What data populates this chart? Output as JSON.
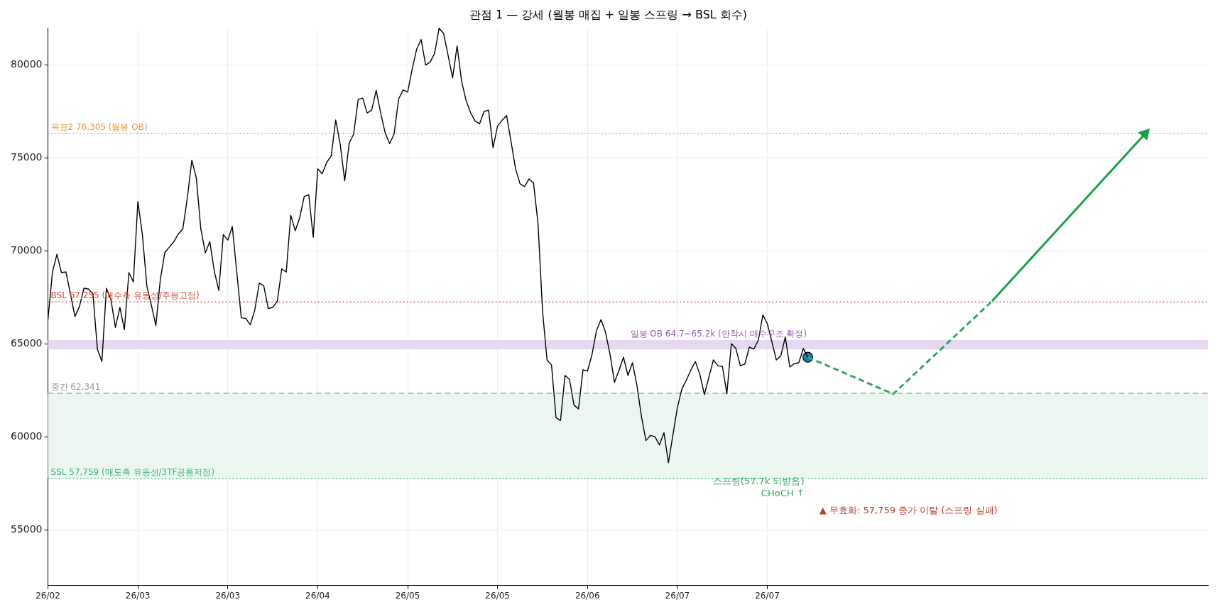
{
  "chart_data": {
    "type": "line",
    "title": "관점 1 — 강세 (월봉 매집 + 일봉 스프링 → BSL 회수)",
    "categories": [
      "26/02",
      null,
      null,
      null,
      null,
      null,
      null,
      null,
      null,
      null,
      null,
      null,
      null,
      null,
      null,
      null,
      null,
      null,
      null,
      null,
      "26/03",
      null,
      null,
      null,
      null,
      null,
      null,
      null,
      null,
      null,
      null,
      null,
      null,
      null,
      null,
      null,
      null,
      null,
      null,
      null,
      "26/03",
      null,
      null,
      null,
      null,
      null,
      null,
      null,
      null,
      null,
      null,
      null,
      null,
      null,
      null,
      null,
      null,
      null,
      null,
      null,
      "26/04",
      null,
      null,
      null,
      null,
      null,
      null,
      null,
      null,
      null,
      null,
      null,
      null,
      null,
      null,
      null,
      null,
      null,
      null,
      null,
      "26/05",
      null,
      null,
      null,
      null,
      null,
      null,
      null,
      null,
      null,
      null,
      null,
      null,
      null,
      null,
      null,
      null,
      null,
      null,
      null,
      "26/05",
      null,
      null,
      null,
      null,
      null,
      null,
      null,
      null,
      null,
      null,
      null,
      null,
      null,
      null,
      null,
      null,
      null,
      null,
      null,
      "26/06",
      null,
      null,
      null,
      null,
      null,
      null,
      null,
      null,
      null,
      null,
      null,
      null,
      null,
      null,
      null,
      null,
      null,
      null,
      null,
      "26/07",
      null,
      null,
      null,
      null,
      null,
      null,
      null,
      null,
      null,
      null,
      null,
      null,
      null,
      null,
      null,
      null,
      null,
      null,
      null,
      "26/07",
      null,
      null,
      null,
      null,
      null,
      null,
      null,
      null,
      null,
      null,
      null,
      null,
      null,
      null,
      null,
      null,
      null,
      null,
      null,
      null,
      null,
      null,
      null,
      null,
      null,
      null,
      null,
      null,
      null,
      null,
      null,
      null,
      null,
      null,
      null,
      null,
      null,
      null,
      null,
      null,
      null,
      null,
      null,
      null,
      null,
      null,
      null,
      null,
      null,
      null,
      null,
      null,
      null,
      null,
      null,
      null,
      null,
      null,
      null,
      null,
      null,
      null,
      null,
      null,
      null,
      null,
      null,
      null,
      null,
      null,
      null,
      null,
      null,
      null,
      null,
      null,
      null,
      null,
      null,
      null,
      null,
      null,
      null,
      null,
      null,
      null,
      null,
      null,
      null,
      null,
      null,
      null,
      null,
      null,
      null,
      null,
      null,
      null
    ],
    "series": [
      {
        "color": "#000000",
        "values": [
          66300,
          68860,
          69820,
          68830,
          68870,
          67690,
          66470,
          67000,
          67990,
          67950,
          67690,
          64700,
          64050,
          67990,
          67380,
          65880,
          66960,
          65760,
          68830,
          68330,
          72660,
          70880,
          68100,
          67080,
          65980,
          68480,
          69920,
          70200,
          70500,
          70910,
          71180,
          72860,
          74880,
          73920,
          71180,
          69890,
          70500,
          68900,
          67870,
          70880,
          70580,
          71310,
          68830,
          66400,
          66370,
          66020,
          66810,
          68270,
          68120,
          66900,
          66960,
          67280,
          69030,
          68860,
          71920,
          71080,
          71790,
          72930,
          73020,
          70730,
          74410,
          74150,
          74760,
          75110,
          77040,
          75740,
          73770,
          75790,
          76290,
          78150,
          78220,
          77420,
          77570,
          78630,
          77420,
          76350,
          75770,
          76300,
          78180,
          78660,
          78540,
          79770,
          80850,
          81370,
          80000,
          80150,
          80630,
          81980,
          81690,
          80510,
          79310,
          81030,
          79120,
          78090,
          77430,
          76990,
          76840,
          77500,
          77570,
          75550,
          76720,
          77020,
          77280,
          75880,
          74410,
          73610,
          73460,
          73870,
          73650,
          71470,
          66770,
          64130,
          63860,
          61030,
          60870,
          63300,
          63080,
          61700,
          61500,
          63600,
          63540,
          64420,
          65710,
          66300,
          65630,
          64450,
          62930,
          63570,
          64280,
          63300,
          63980,
          62760,
          61090,
          59790,
          60070,
          60000,
          59560,
          60220,
          58610,
          60100,
          61580,
          62580,
          63050,
          63600,
          64040,
          63350,
          62270,
          63200,
          64130,
          63820,
          63790,
          62320,
          65010,
          64750,
          63820,
          63910,
          64820,
          64720,
          65190,
          66550,
          66080,
          65120,
          64130,
          64350,
          65370,
          63750,
          63940,
          63980,
          64750,
          64280,
          null,
          null,
          null,
          null,
          null,
          null,
          null,
          null,
          null,
          null,
          null,
          null,
          null,
          null,
          null,
          null,
          null,
          null,
          null,
          null,
          null,
          null,
          null,
          null,
          null,
          null,
          null,
          null,
          null,
          null,
          null,
          null,
          null,
          null,
          null,
          null,
          null,
          null,
          null,
          null,
          null,
          null,
          null,
          null,
          null,
          null,
          null,
          null,
          null,
          null,
          null,
          null,
          null,
          null,
          null,
          null,
          null,
          null,
          null,
          null,
          null,
          null,
          null,
          null,
          null,
          null,
          null,
          null,
          null,
          null,
          null,
          null,
          null,
          null,
          null,
          null,
          null,
          null,
          null,
          null,
          null,
          null,
          null,
          null,
          null,
          null,
          null,
          null,
          null
        ]
      },
      {
        "color": "#2eaa5c",
        "line_style": "dashed",
        "values": [
          null,
          null,
          null,
          null,
          null,
          null,
          null,
          null,
          null,
          null,
          null,
          null,
          null,
          null,
          null,
          null,
          null,
          null,
          null,
          null,
          null,
          null,
          null,
          null,
          null,
          null,
          null,
          null,
          null,
          null,
          null,
          null,
          null,
          null,
          null,
          null,
          null,
          null,
          null,
          null,
          null,
          null,
          null,
          null,
          null,
          null,
          null,
          null,
          null,
          null,
          null,
          null,
          null,
          null,
          null,
          null,
          null,
          null,
          null,
          null,
          null,
          null,
          null,
          null,
          null,
          null,
          null,
          null,
          null,
          null,
          null,
          null,
          null,
          null,
          null,
          null,
          null,
          null,
          null,
          null,
          null,
          null,
          null,
          null,
          null,
          null,
          null,
          null,
          null,
          null,
          null,
          null,
          null,
          null,
          null,
          null,
          null,
          null,
          null,
          null,
          null,
          null,
          null,
          null,
          null,
          null,
          null,
          null,
          null,
          null,
          null,
          null,
          null,
          null,
          null,
          null,
          null,
          null,
          null,
          null,
          null,
          null,
          null,
          null,
          null,
          null,
          null,
          null,
          null,
          null,
          null,
          null,
          null,
          null,
          null,
          null,
          null,
          null,
          null,
          null,
          null,
          null,
          null,
          null,
          null,
          null,
          null,
          null,
          null,
          null,
          null,
          null,
          null,
          null,
          null,
          null,
          null,
          null,
          null,
          null,
          null,
          null,
          null,
          null,
          null,
          null,
          null,
          null,
          null,
          64280,
          null,
          null,
          null,
          null,
          null,
          null,
          null,
          null,
          null,
          null,
          null,
          null,
          null,
          null,
          null,
          null,
          null,
          null,
          62300,
          null,
          null,
          null,
          null,
          null,
          null,
          null,
          null,
          null,
          null,
          null,
          null,
          null,
          null,
          null,
          null,
          null,
          null,
          null,
          null,
          null,
          67300,
          null,
          null,
          null,
          null,
          null,
          null,
          null,
          null,
          null,
          null,
          null,
          null,
          null,
          null,
          null,
          null,
          null,
          null,
          null,
          null,
          null,
          null,
          null,
          null,
          null,
          null,
          null,
          null,
          null,
          null,
          null,
          null,
          null,
          null,
          null,
          null,
          null,
          null,
          null,
          null,
          null,
          null,
          null,
          null,
          null,
          null,
          null,
          null
        ]
      },
      {
        "color": "#16a34a",
        "marker": "triangle",
        "values": [
          null,
          null,
          null,
          null,
          null,
          null,
          null,
          null,
          null,
          null,
          null,
          null,
          null,
          null,
          null,
          null,
          null,
          null,
          null,
          null,
          null,
          null,
          null,
          null,
          null,
          null,
          null,
          null,
          null,
          null,
          null,
          null,
          null,
          null,
          null,
          null,
          null,
          null,
          null,
          null,
          null,
          null,
          null,
          null,
          null,
          null,
          null,
          null,
          null,
          null,
          null,
          null,
          null,
          null,
          null,
          null,
          null,
          null,
          null,
          null,
          null,
          null,
          null,
          null,
          null,
          null,
          null,
          null,
          null,
          null,
          null,
          null,
          null,
          null,
          null,
          null,
          null,
          null,
          null,
          null,
          null,
          null,
          null,
          null,
          null,
          null,
          null,
          null,
          null,
          null,
          null,
          null,
          null,
          null,
          null,
          null,
          null,
          null,
          null,
          null,
          null,
          null,
          null,
          null,
          null,
          null,
          null,
          null,
          null,
          null,
          null,
          null,
          null,
          null,
          null,
          null,
          null,
          null,
          null,
          null,
          null,
          null,
          null,
          null,
          null,
          null,
          null,
          null,
          null,
          null,
          null,
          null,
          null,
          null,
          null,
          null,
          null,
          null,
          null,
          null,
          null,
          null,
          null,
          null,
          null,
          null,
          null,
          null,
          null,
          null,
          null,
          null,
          null,
          null,
          null,
          null,
          null,
          null,
          null,
          null,
          null,
          null,
          null,
          null,
          null,
          null,
          null,
          null,
          null,
          null,
          null,
          null,
          null,
          null,
          null,
          null,
          null,
          null,
          null,
          null,
          null,
          null,
          null,
          null,
          null,
          null,
          null,
          null,
          null,
          null,
          null,
          null,
          null,
          null,
          null,
          null,
          null,
          null,
          null,
          null,
          null,
          null,
          null,
          null,
          null,
          null,
          null,
          null,
          null,
          null,
          67300,
          null,
          null,
          null,
          null,
          null,
          null,
          null,
          null,
          null,
          null,
          null,
          null,
          null,
          null,
          null,
          null,
          null,
          null,
          null,
          null,
          null,
          null,
          null,
          null,
          null,
          null,
          null,
          null,
          null,
          null,
          null,
          null,
          null,
          76300,
          null,
          null,
          null,
          null,
          null,
          null,
          null,
          null,
          null,
          null,
          null,
          null,
          null,
          null
        ]
      },
      {
        "type": "scatter",
        "color": "#1f77b4",
        "marker": "circle",
        "values": [
          null,
          null,
          null,
          null,
          null,
          null,
          null,
          null,
          null,
          null,
          null,
          null,
          null,
          null,
          null,
          null,
          null,
          null,
          null,
          null,
          null,
          null,
          null,
          null,
          null,
          null,
          null,
          null,
          null,
          null,
          null,
          null,
          null,
          null,
          null,
          null,
          null,
          null,
          null,
          null,
          null,
          null,
          null,
          null,
          null,
          null,
          null,
          null,
          null,
          null,
          null,
          null,
          null,
          null,
          null,
          null,
          null,
          null,
          null,
          null,
          null,
          null,
          null,
          null,
          null,
          null,
          null,
          null,
          null,
          null,
          null,
          null,
          null,
          null,
          null,
          null,
          null,
          null,
          null,
          null,
          null,
          null,
          null,
          null,
          null,
          null,
          null,
          null,
          null,
          null,
          null,
          null,
          null,
          null,
          null,
          null,
          null,
          null,
          null,
          null,
          null,
          null,
          null,
          null,
          null,
          null,
          null,
          null,
          null,
          null,
          null,
          null,
          null,
          null,
          null,
          null,
          null,
          null,
          null,
          null,
          null,
          null,
          null,
          null,
          null,
          null,
          null,
          null,
          null,
          null,
          null,
          null,
          null,
          null,
          null,
          null,
          null,
          null,
          null,
          null,
          null,
          null,
          null,
          null,
          null,
          null,
          null,
          null,
          null,
          null,
          null,
          null,
          null,
          null,
          null,
          null,
          null,
          null,
          null,
          null,
          null,
          null,
          null,
          null,
          null,
          null,
          null,
          null,
          null,
          64280,
          null,
          null,
          null,
          null,
          null,
          null,
          null,
          null,
          null,
          null,
          null,
          null,
          null,
          null,
          null,
          null,
          null,
          null,
          null,
          null,
          null,
          null,
          null,
          null,
          null,
          null,
          null,
          null,
          null,
          null,
          null,
          null,
          null,
          null,
          null,
          null,
          null,
          null,
          null,
          null,
          null,
          null,
          null,
          null,
          null,
          null,
          null,
          null,
          null,
          null,
          null,
          null,
          null,
          null,
          null,
          null,
          null,
          null,
          null,
          null,
          null,
          null,
          null,
          null,
          null,
          null,
          null,
          null,
          null,
          null,
          null,
          null,
          null,
          null,
          null,
          null,
          null,
          null,
          null,
          null,
          null,
          null,
          null,
          null,
          null,
          null,
          null,
          null,
          null
        ]
      }
    ],
    "ylim": [
      52000,
      82000
    ],
    "yticks": [
      55000,
      60000,
      65000,
      70000,
      75000,
      80000
    ],
    "grid": true,
    "ref_lines": [
      {
        "axis": "y",
        "value": 76305,
        "label": "목표2 76,305 (월봉 OB)",
        "color": "#f0943a",
        "line_style": "dotted"
      },
      {
        "axis": "y",
        "value": 67255,
        "label": "BSL 67,255 (매수측 유동성/주봉고점)",
        "color": "#d9473b",
        "line_style": "dotted"
      },
      {
        "axis": "y",
        "value": 62341,
        "label": "중간 62,341",
        "color": "#8a9a90",
        "line_style": "dashed"
      },
      {
        "axis": "y",
        "value": 57759,
        "label": "SSL 57,759 (매도측 유동성/3TF공통저점)",
        "color": "#3cb36e",
        "line_style": "dotted"
      }
    ],
    "bands": [
      {
        "axis": "y",
        "from": 57759,
        "to": 62341,
        "color": "#ecf6f0"
      },
      {
        "axis": "y",
        "from": 64700,
        "to": 65200,
        "label": "일봉 OB 64.7~65.2k (안착시 매수구조 확정)",
        "color": "#e6d8ee"
      }
    ],
    "annotations": [
      "스프링(57.7k 되받음)",
      "CHoCH ↑",
      "▲ 무효화: 57,759 종가 이탈 (스프링 실패)"
    ]
  }
}
